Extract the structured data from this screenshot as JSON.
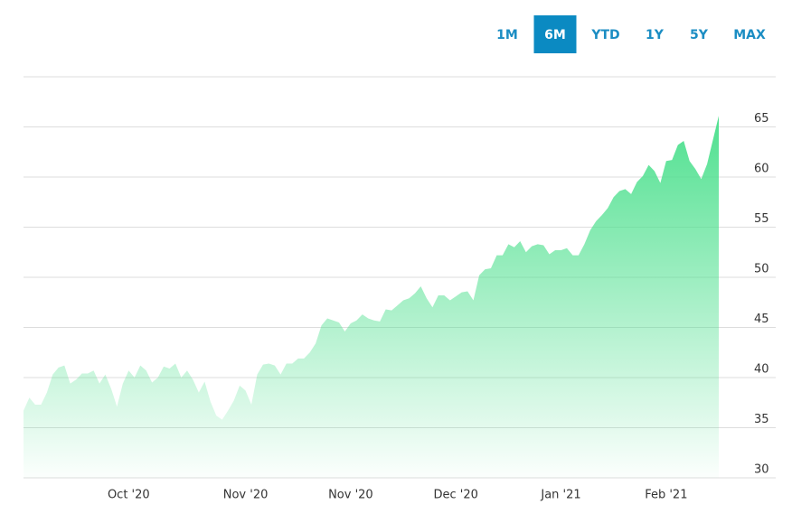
{
  "chart_data": {
    "type": "area",
    "range_buttons": [
      "1M",
      "6M",
      "YTD",
      "1Y",
      "5Y",
      "MAX"
    ],
    "selected_range": "6M",
    "categories": [
      null,
      null,
      null,
      null,
      null,
      null,
      null,
      null,
      null,
      null,
      null,
      null,
      null,
      null,
      null,
      null,
      null,
      null,
      "Oct '20",
      null,
      null,
      null,
      null,
      null,
      null,
      null,
      null,
      null,
      null,
      null,
      null,
      null,
      null,
      null,
      null,
      null,
      null,
      null,
      "Nov '20",
      null,
      null,
      null,
      null,
      null,
      null,
      null,
      null,
      null,
      null,
      null,
      null,
      null,
      null,
      null,
      null,
      null,
      "Nov '20",
      null,
      null,
      null,
      null,
      null,
      null,
      null,
      null,
      null,
      null,
      null,
      null,
      null,
      null,
      null,
      null,
      null,
      "Dec '20",
      null,
      null,
      null,
      null,
      null,
      null,
      null,
      null,
      null,
      null,
      null,
      null,
      null,
      null,
      null,
      null,
      null,
      "Jan '21",
      null,
      null,
      null,
      null,
      null,
      null,
      null,
      null,
      null,
      null,
      null,
      null,
      null,
      null,
      null,
      null,
      null,
      "Feb '21",
      null,
      null,
      null,
      null,
      null,
      null,
      null,
      null,
      null
    ],
    "series": [
      {
        "color": "#4fe08f",
        "values": [
          36.7,
          38.0,
          37.3,
          37.3,
          38.5,
          40.3,
          41.0,
          41.2,
          39.4,
          39.8,
          40.4,
          40.4,
          40.7,
          39.4,
          40.3,
          38.9,
          37.1,
          39.4,
          40.7,
          40.0,
          41.2,
          40.7,
          39.5,
          40.0,
          41.1,
          40.9,
          41.4,
          40.0,
          40.7,
          39.8,
          38.5,
          39.6,
          37.6,
          36.2,
          35.8,
          36.7,
          37.7,
          39.2,
          38.7,
          37.3,
          40.3,
          41.3,
          41.4,
          41.2,
          40.3,
          41.4,
          41.4,
          41.9,
          41.9,
          42.5,
          43.4,
          45.2,
          45.9,
          45.7,
          45.5,
          44.6,
          45.4,
          45.7,
          46.3,
          45.9,
          45.7,
          45.6,
          46.8,
          46.7,
          47.2,
          47.7,
          47.9,
          48.4,
          49.1,
          47.9,
          47.0,
          48.2,
          48.2,
          47.7,
          48.1,
          48.5,
          48.6,
          47.7,
          50.2,
          50.8,
          50.9,
          52.2,
          52.2,
          53.3,
          53.0,
          53.6,
          52.5,
          53.1,
          53.3,
          53.2,
          52.3,
          52.7,
          52.7,
          52.9,
          52.2,
          52.2,
          53.3,
          54.7,
          55.6,
          56.2,
          56.9,
          58.0,
          58.6,
          58.8,
          58.3,
          59.5,
          60.1,
          61.2,
          60.6,
          59.4,
          61.6,
          61.7,
          63.2,
          63.6,
          61.6,
          60.8,
          59.8,
          61.3,
          63.7,
          66.1
        ]
      }
    ],
    "ylim": [
      30,
      70
    ],
    "yticks": [
      30,
      35,
      40,
      45,
      50,
      55,
      60,
      65
    ],
    "grid": true
  }
}
